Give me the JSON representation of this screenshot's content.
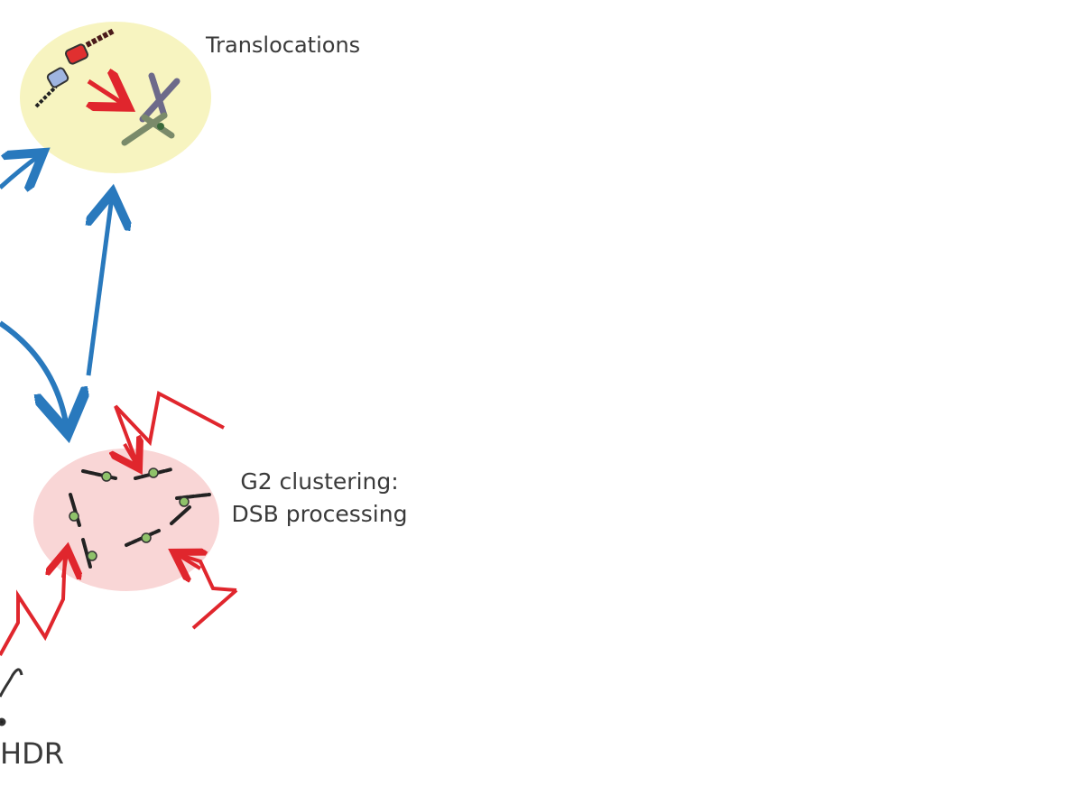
{
  "labels": {
    "translocations": "Translocations",
    "g2_clustering_line1": "G2 clustering:",
    "g2_clustering_line2": "DSB processing",
    "hdr": "HDR"
  },
  "colors": {
    "translocation_ellipse": "#f7f4c0",
    "clustering_ellipse": "#f9d6d6",
    "blue_arrow": "#2979bd",
    "red_arrow": "#e0262d",
    "text": "#3a3a3a"
  },
  "icons": [
    "chromosome-fragment-icon",
    "translocated-chromosome-icon",
    "lightning-bolt-icon",
    "dsb-chromatin-icon"
  ]
}
